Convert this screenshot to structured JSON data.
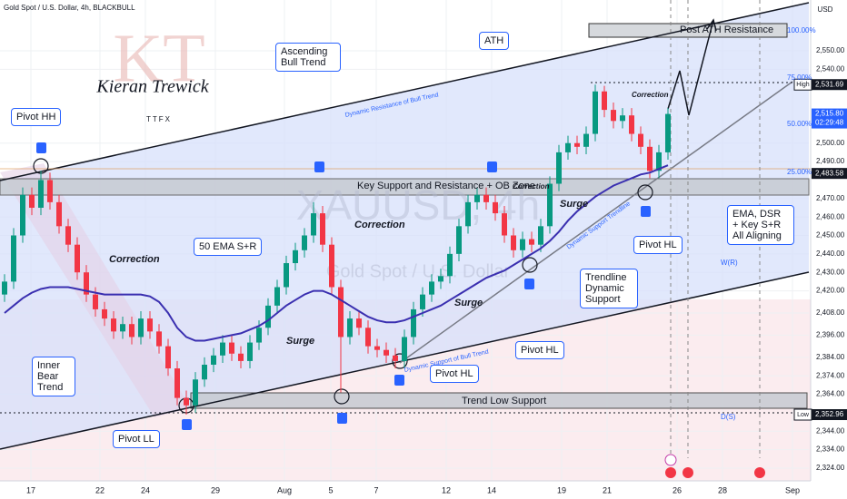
{
  "header": {
    "symbol": "Gold Spot / U.S. Dollar, 4h, BLACKBULL",
    "currency": "USD",
    "watermark": "XAUUSD, 4h",
    "watermark_sub": "Gold Spot / U.S. Dollar",
    "logo": "KT",
    "signature": "Kieran Trewick",
    "brand": "TTFX"
  },
  "chart_data": {
    "type": "candlestick",
    "open": [
      2418,
      2425,
      2450,
      2472,
      2465,
      2480,
      2468,
      2455,
      2445,
      2430,
      2418,
      2410,
      2405,
      2398,
      2402,
      2395,
      2405,
      2398,
      2390,
      2378,
      2362,
      2358,
      2372,
      2380,
      2385,
      2392,
      2386,
      2382,
      2392,
      2400,
      2412,
      2422,
      2435,
      2442,
      2450,
      2462,
      2445,
      2422,
      2395,
      2405,
      2400,
      2390,
      2388,
      2385,
      2382,
      2395,
      2410,
      2418,
      2425,
      2428,
      2440,
      2455,
      2468,
      2472,
      2468,
      2462,
      2450,
      2442,
      2448,
      2445,
      2455,
      2478,
      2495,
      2500,
      2498,
      2505,
      2528,
      2518,
      2512,
      2515,
      2505,
      2498,
      2485,
      2495
    ],
    "high": [
      2429,
      2454,
      2476,
      2476,
      2485,
      2484,
      2472,
      2459,
      2449,
      2434,
      2422,
      2414,
      2409,
      2406,
      2406,
      2409,
      2409,
      2402,
      2394,
      2382,
      2366,
      2376,
      2384,
      2389,
      2396,
      2396,
      2390,
      2396,
      2404,
      2416,
      2426,
      2439,
      2446,
      2454,
      2468,
      2466,
      2449,
      2426,
      2409,
      2409,
      2404,
      2394,
      2392,
      2389,
      2399,
      2414,
      2422,
      2429,
      2432,
      2444,
      2459,
      2472,
      2476,
      2476,
      2472,
      2466,
      2454,
      2452,
      2452,
      2459,
      2482,
      2499,
      2504,
      2504,
      2509,
      2531.69,
      2531,
      2522,
      2519,
      2519,
      2509,
      2502,
      2499,
      2519
    ],
    "low": [
      2414,
      2421,
      2446,
      2461,
      2461,
      2464,
      2451,
      2441,
      2426,
      2414,
      2406,
      2401,
      2394,
      2394,
      2391,
      2391,
      2394,
      2386,
      2374,
      2358,
      2352.96,
      2354,
      2368,
      2376,
      2381,
      2382,
      2378,
      2378,
      2388,
      2396,
      2408,
      2418,
      2431,
      2438,
      2446,
      2441,
      2418,
      2365,
      2391,
      2396,
      2386,
      2384,
      2381,
      2378,
      2378,
      2391,
      2406,
      2414,
      2421,
      2424,
      2436,
      2451,
      2464,
      2464,
      2458,
      2446,
      2438,
      2438,
      2441,
      2441,
      2451,
      2474,
      2491,
      2494,
      2494,
      2501,
      2514,
      2508,
      2508,
      2501,
      2494,
      2481,
      2481,
      2491
    ],
    "close": [
      2425,
      2450,
      2472,
      2465,
      2480,
      2468,
      2455,
      2445,
      2430,
      2418,
      2410,
      2405,
      2398,
      2402,
      2395,
      2405,
      2398,
      2390,
      2378,
      2362,
      2358,
      2372,
      2380,
      2385,
      2392,
      2386,
      2382,
      2392,
      2400,
      2412,
      2422,
      2435,
      2442,
      2450,
      2462,
      2445,
      2422,
      2395,
      2405,
      2400,
      2390,
      2388,
      2385,
      2382,
      2395,
      2410,
      2418,
      2425,
      2428,
      2440,
      2455,
      2468,
      2472,
      2468,
      2462,
      2450,
      2442,
      2448,
      2445,
      2455,
      2478,
      2495,
      2500,
      2498,
      2505,
      2528,
      2518,
      2512,
      2515,
      2505,
      2498,
      2485,
      2495,
      2515.8
    ],
    "ema": [
      2408,
      2412,
      2416,
      2419,
      2421,
      2422,
      2422,
      2422,
      2421,
      2420,
      2419,
      2418,
      2418,
      2418,
      2418,
      2418,
      2417,
      2414,
      2408,
      2400,
      2395,
      2393,
      2393,
      2394,
      2395,
      2396,
      2397,
      2399,
      2401,
      2404,
      2408,
      2412,
      2415,
      2418,
      2420,
      2420,
      2418,
      2415,
      2412,
      2409,
      2406,
      2404,
      2403,
      2403,
      2404,
      2406,
      2408,
      2410,
      2412,
      2415,
      2418,
      2421,
      2424,
      2427,
      2429,
      2431,
      2434,
      2437,
      2440,
      2443,
      2447,
      2452,
      2458,
      2463,
      2467,
      2471,
      2474,
      2477,
      2479,
      2481,
      2483,
      2484,
      2486,
      2488
    ],
    "up_color": "#089981",
    "down_color": "#f23645",
    "ema_color": "#3a2fb0",
    "xlim": [
      -0.5,
      88.5
    ],
    "xticks": [
      {
        "value": 2.9,
        "label": "17"
      },
      {
        "value": 10.5,
        "label": "22"
      },
      {
        "value": 15.5,
        "label": "24"
      },
      {
        "value": 23.2,
        "label": "29"
      },
      {
        "value": 30.8,
        "label": "Aug"
      },
      {
        "value": 35.9,
        "label": "5"
      },
      {
        "value": 40.9,
        "label": "7"
      },
      {
        "value": 48.6,
        "label": "12"
      },
      {
        "value": 53.6,
        "label": "14"
      },
      {
        "value": 61.3,
        "label": "19"
      },
      {
        "value": 66.3,
        "label": "21"
      },
      {
        "value": 74,
        "label": "26"
      },
      {
        "value": 79,
        "label": "28"
      },
      {
        "value": 86.7,
        "label": "Sep"
      }
    ],
    "ylim": [
      2317.1,
      2577.5
    ],
    "yticks": [
      {
        "value": 2550,
        "label": "2,550.00"
      },
      {
        "value": 2540,
        "label": "2,540.00"
      },
      {
        "value": 2500,
        "label": "2,500.00"
      },
      {
        "value": 2490,
        "label": "2,490.00"
      },
      {
        "value": 2470,
        "label": "2,470.00"
      },
      {
        "value": 2460,
        "label": "2,460.00"
      },
      {
        "value": 2450,
        "label": "2,450.00"
      },
      {
        "value": 2440,
        "label": "2,440.00"
      },
      {
        "value": 2430,
        "label": "2,430.00"
      },
      {
        "value": 2420,
        "label": "2,420.00"
      },
      {
        "value": 2408,
        "label": "2,408.00"
      },
      {
        "value": 2396,
        "label": "2,396.00"
      },
      {
        "value": 2384,
        "label": "2,384.00"
      },
      {
        "value": 2374,
        "label": "2,374.00"
      },
      {
        "value": 2364,
        "label": "2,364.00"
      },
      {
        "value": 2344,
        "label": "2,344.00"
      },
      {
        "value": 2334,
        "label": "2,334.00"
      },
      {
        "value": 2324,
        "label": "2,324.00"
      }
    ],
    "price_labels": [
      {
        "name": "High",
        "value": 2531.69,
        "label": "2,531.69",
        "color": "#131722"
      },
      {
        "value": 2515.8,
        "label": "2,515.80",
        "countdown": "02:29:48",
        "color": "#2962ff"
      },
      {
        "value": 2483.58,
        "label": "2,483.58",
        "color": "#131722"
      },
      {
        "name": "Low",
        "value": 2352.96,
        "label": "2,352.96",
        "color": "#131722"
      }
    ],
    "annotations": [
      "Pivot HH",
      "Ascending Bull Trend",
      "ATH",
      "Post ATH Resistance",
      "Correction",
      "Key Support and Resistance + OB Zone",
      "Correction",
      "Correction",
      "Correction",
      "Surge",
      "50 EMA S+R",
      "Surge",
      "Surge",
      "Pivot HL",
      "Trendline Dynamic Support",
      "EMA, DSR + Key S+R All Aligning",
      "Pivot HL",
      "Pivot HL",
      "Inner Bear Trend",
      "Trend Low Support",
      "Pivot LL",
      "Dynamic Resistance of Bull Trend",
      "Dynamic Support Trendline",
      "Dynamic Support of Bull Trend",
      "100.00%",
      "75.00%",
      "50.00%",
      "25.00%",
      "W(R)",
      "D(S)"
    ]
  }
}
